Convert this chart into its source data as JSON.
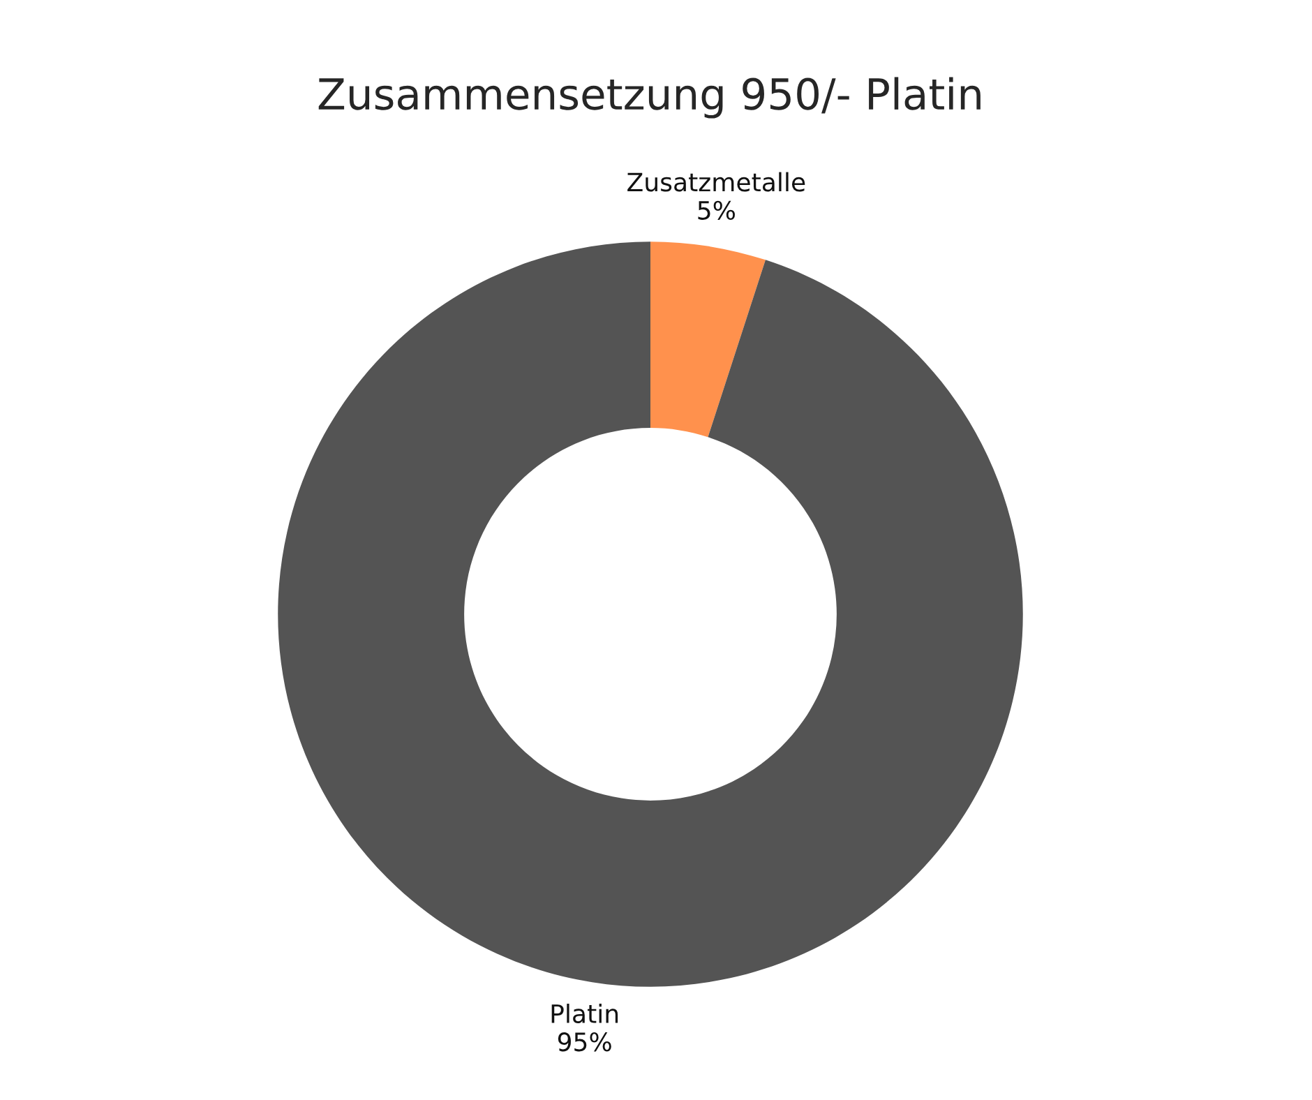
{
  "chart_data": {
    "type": "donut",
    "title": "Zusammensetzung 950/- Platin",
    "categories": [
      "Zusatzmetalle",
      "Platin"
    ],
    "values": [
      5,
      95
    ],
    "colors": [
      "#ff914d",
      "#545454"
    ],
    "value_labels": [
      "5%",
      "95%"
    ],
    "legend": false
  }
}
